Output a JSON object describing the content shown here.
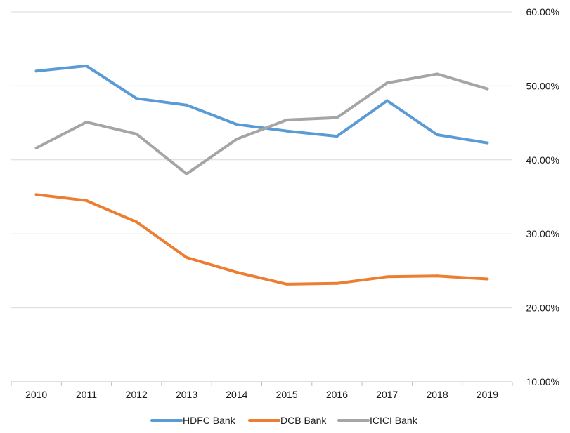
{
  "chart_data": {
    "type": "line",
    "categories": [
      "2010",
      "2011",
      "2012",
      "2013",
      "2014",
      "2015",
      "2016",
      "2017",
      "2018",
      "2019"
    ],
    "series": [
      {
        "name": "HDFC Bank",
        "color": "#5b9bd5",
        "values": [
          52.0,
          52.7,
          48.3,
          47.4,
          44.8,
          43.9,
          43.2,
          48.0,
          43.4,
          42.3
        ]
      },
      {
        "name": "DCB Bank",
        "color": "#ed7d31",
        "values": [
          35.3,
          34.5,
          31.6,
          26.8,
          24.8,
          23.2,
          23.3,
          24.2,
          24.3,
          23.9
        ]
      },
      {
        "name": "ICICI Bank",
        "color": "#a5a5a5",
        "values": [
          41.6,
          45.1,
          43.5,
          38.1,
          42.8,
          45.4,
          45.7,
          50.4,
          51.6,
          49.6
        ]
      }
    ],
    "y_ticks": [
      "10.00%",
      "20.00%",
      "30.00%",
      "40.00%",
      "50.00%",
      "60.00%"
    ],
    "ylim": [
      10,
      60
    ],
    "y_axis_position": "right",
    "grid": true,
    "legend_position": "bottom"
  }
}
